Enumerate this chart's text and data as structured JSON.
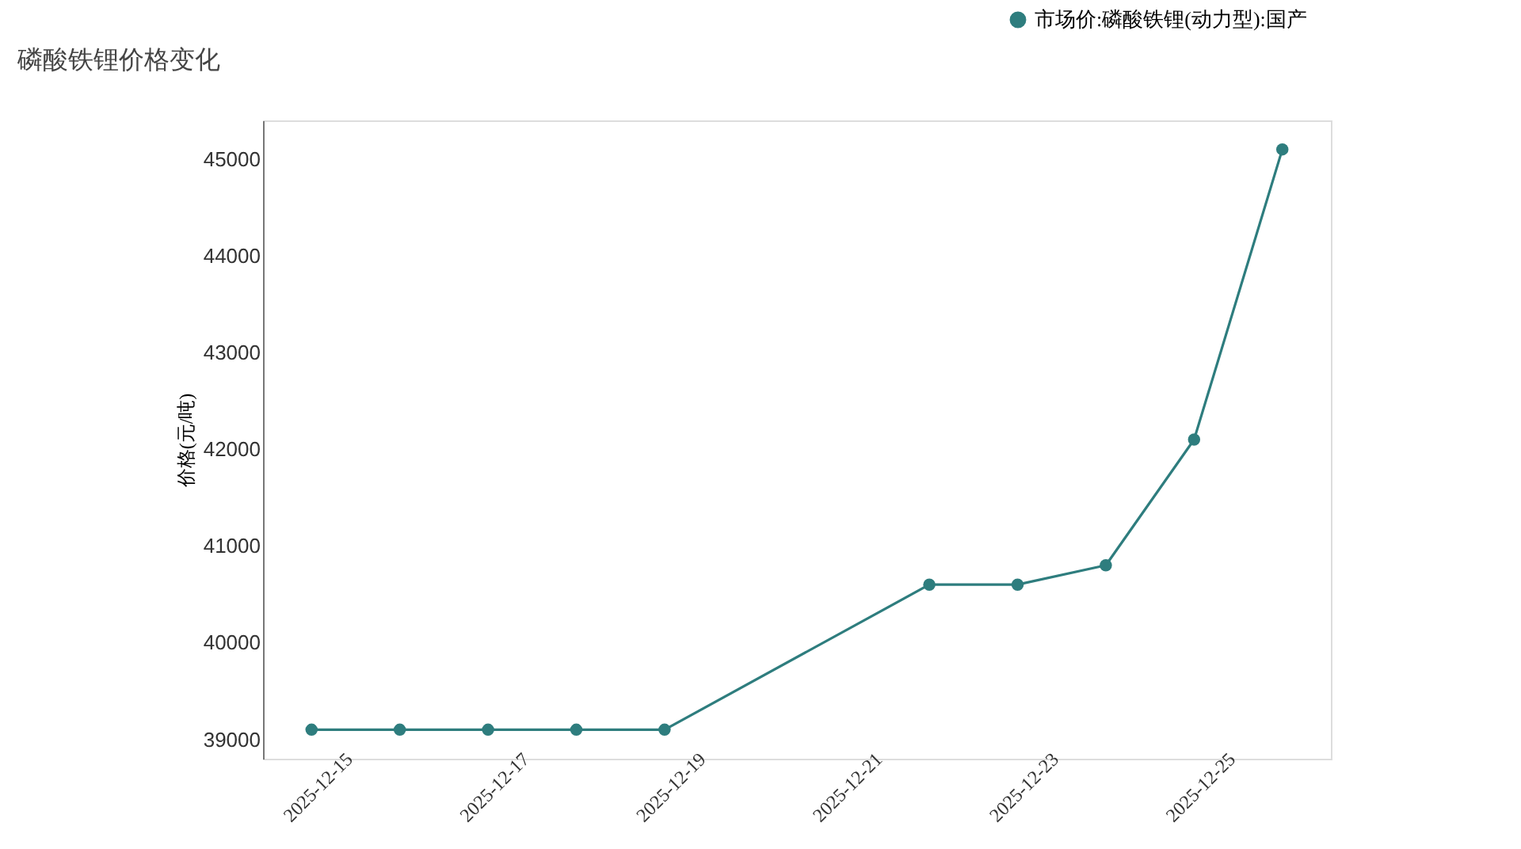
{
  "chart_data": {
    "type": "line",
    "title": "磷酸铁锂价格变化",
    "ylabel": "价格(元/吨)",
    "x": [
      "2025-12-15",
      "2025-12-16",
      "2025-12-17",
      "2025-12-18",
      "2025-12-19",
      "2025-12-22",
      "2025-12-23",
      "2025-12-24",
      "2025-12-25",
      "2025-12-26"
    ],
    "series": [
      {
        "name": "市场价:磷酸铁锂(动力型):国产",
        "color": "#2e7d7e",
        "values": [
          39100,
          39100,
          39100,
          39100,
          39100,
          40600,
          40600,
          40800,
          42100,
          45100
        ]
      }
    ],
    "xlim": [
      "2025-12-14T10:48",
      "2025-12-26T13:12"
    ],
    "xticks": [
      {
        "value": "2025-12-15",
        "label": "2025-12-15"
      },
      {
        "value": "2025-12-17",
        "label": "2025-12-17"
      },
      {
        "value": "2025-12-19",
        "label": "2025-12-19"
      },
      {
        "value": "2025-12-21",
        "label": "2025-12-21"
      },
      {
        "value": "2025-12-23",
        "label": "2025-12-23"
      },
      {
        "value": "2025-12-25",
        "label": "2025-12-25"
      }
    ],
    "ylim": [
      38800,
      45400
    ],
    "yticks": [
      39000,
      40000,
      41000,
      42000,
      43000,
      44000,
      45000
    ],
    "grid": false,
    "legend": "top right",
    "marker": "circle",
    "line_style": "solid"
  }
}
